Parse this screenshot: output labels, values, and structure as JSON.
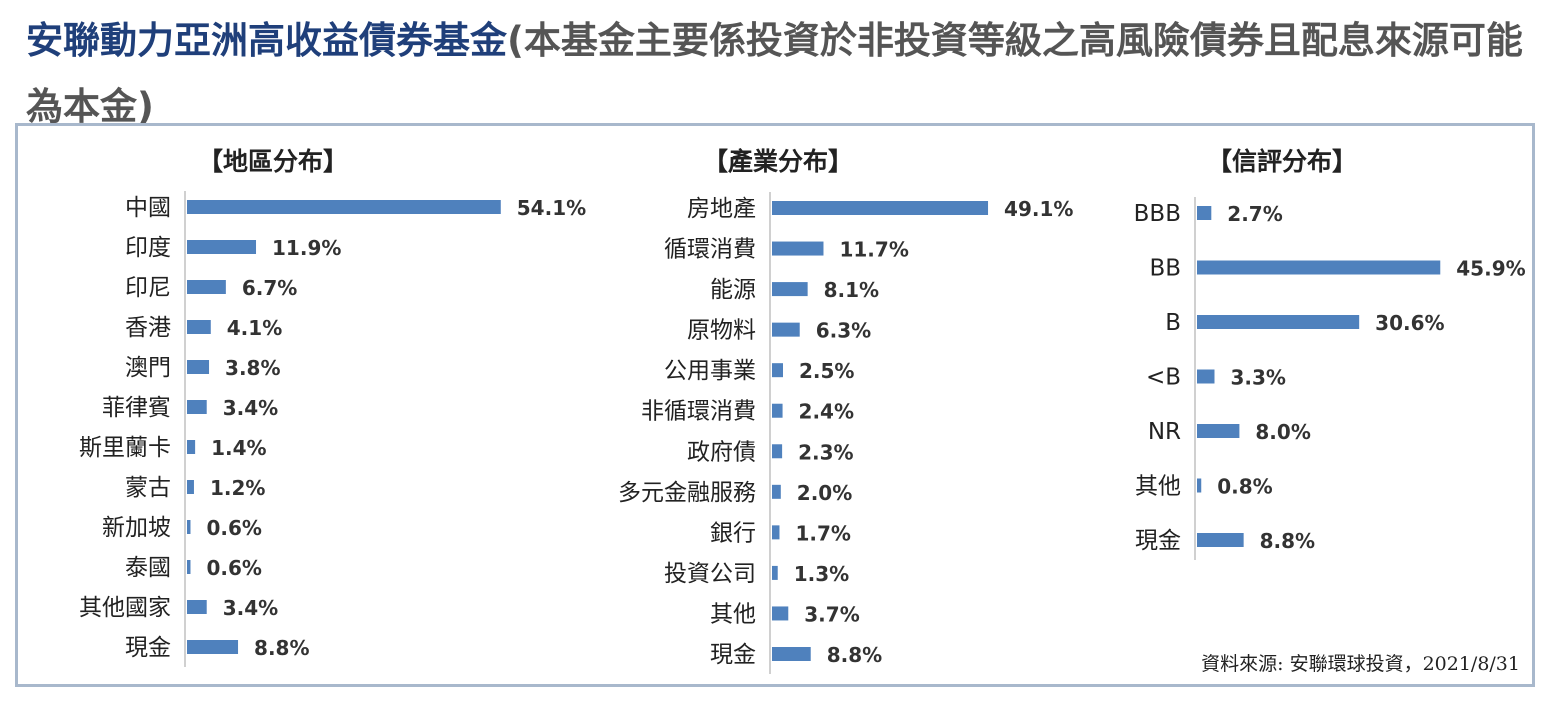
{
  "title": {
    "main": "安聯動力亞洲高收益債券基金",
    "sub": "(本基金主要係投資於非投資等級之高風險債券且配息來源可能為本金)"
  },
  "source": "資料來源: 安聯環球投資，2021/8/31",
  "colors": {
    "bar": "#4f81bd",
    "axis": "#d0d0d0",
    "text": "#222222"
  },
  "chart_data": [
    {
      "type": "bar",
      "orientation": "horizontal",
      "title": "【地區分布】",
      "categories": [
        "中國",
        "印度",
        "印尼",
        "香港",
        "澳門",
        "菲律賓",
        "斯里蘭卡",
        "蒙古",
        "新加坡",
        "泰國",
        "其他國家",
        "現金"
      ],
      "values": [
        54.1,
        11.9,
        6.7,
        4.1,
        3.8,
        3.4,
        1.4,
        1.2,
        0.6,
        0.6,
        3.4,
        8.8
      ],
      "labels": [
        "54.1%",
        "11.9%",
        "6.7%",
        "4.1%",
        "3.8%",
        "3.4%",
        "1.4%",
        "1.2%",
        "0.6%",
        "0.6%",
        "3.4%",
        "8.8%"
      ]
    },
    {
      "type": "bar",
      "orientation": "horizontal",
      "title": "【產業分布】",
      "categories": [
        "房地產",
        "循環消費",
        "能源",
        "原物料",
        "公用事業",
        "非循環消費",
        "政府債",
        "多元金融服務",
        "銀行",
        "投資公司",
        "其他",
        "現金"
      ],
      "values": [
        49.1,
        11.7,
        8.1,
        6.3,
        2.5,
        2.4,
        2.3,
        2.0,
        1.7,
        1.3,
        3.7,
        8.8
      ],
      "labels": [
        "49.1%",
        "11.7%",
        "8.1%",
        "6.3%",
        "2.5%",
        "2.4%",
        "2.3%",
        "2.0%",
        "1.7%",
        "1.3%",
        "3.7%",
        "8.8%"
      ]
    },
    {
      "type": "bar",
      "orientation": "horizontal",
      "title": "【信評分布】",
      "categories": [
        "BBB",
        "BB",
        "B",
        "<B",
        "NR",
        "其他",
        "現金"
      ],
      "values": [
        2.7,
        45.9,
        30.6,
        3.3,
        8.0,
        0.8,
        8.8
      ],
      "labels": [
        "2.7%",
        "45.9%",
        "30.6%",
        "3.3%",
        "8.0%",
        "0.8%",
        "8.8%"
      ]
    }
  ]
}
